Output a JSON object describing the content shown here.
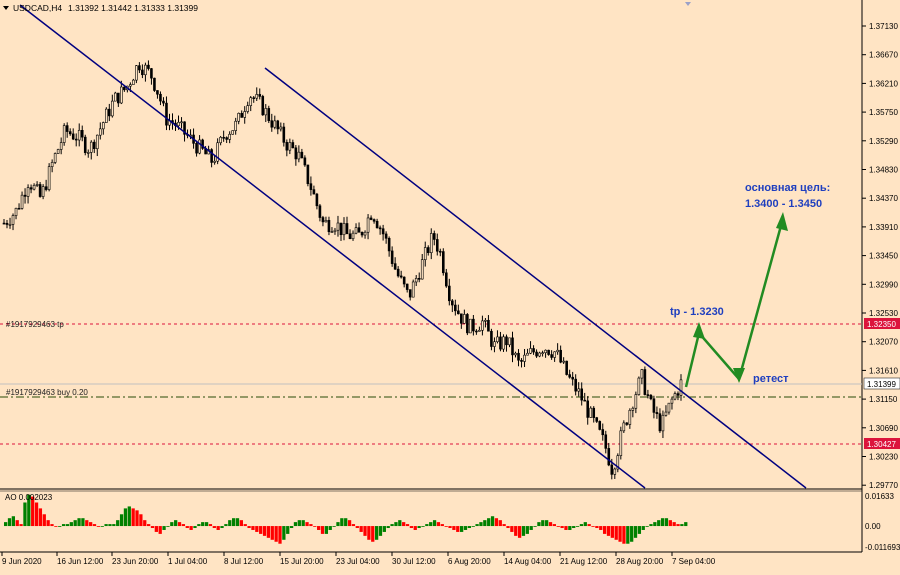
{
  "header": {
    "symbol": "USDCAD,H4",
    "ohlc": "1.31392 1.31442 1.31333 1.31399"
  },
  "orders": {
    "tp_label": "#1917929463 tp",
    "buy_label": "#1917929463 buy 0.20"
  },
  "annotations": {
    "main_target_line1": "основная цель:",
    "main_target_line2": "1.3400 - 1.3450",
    "tp_text": "tp - 1.3230",
    "retest_text": "ретест"
  },
  "indicator": {
    "label": "AO 0.002023",
    "ticks": [
      "0.01633",
      "0.00",
      "-0.011693"
    ]
  },
  "price_axis": {
    "ticks": [
      "1.37130",
      "1.36670",
      "1.36210",
      "1.35750",
      "1.35290",
      "1.34830",
      "1.34370",
      "1.33910",
      "1.33450",
      "1.32990",
      "1.32530",
      "1.32070",
      "1.31610",
      "1.31150",
      "1.30690",
      "1.30230",
      "1.29770"
    ],
    "tp_tag": "1.32350",
    "current_tag": "1.31399",
    "sl_tag": "1.30427"
  },
  "time_axis": {
    "labels": [
      "9 Jun 2020",
      "16 Jun 12:00",
      "23 Jun 20:00",
      "1 Jul 04:00",
      "8 Jul 12:00",
      "15 Jul 20:00",
      "23 Jul 04:00",
      "30 Jul 12:00",
      "6 Aug 20:00",
      "14 Aug 04:00",
      "21 Aug 12:00",
      "28 Aug 20:00",
      "7 Sep 04:00"
    ]
  },
  "colors": {
    "background": "#ffe4c4",
    "candles": "#000000",
    "channel": "#000080",
    "arrow": "#228b22",
    "annotation_text": "#1f3fbf",
    "tp_line": "#dc143c",
    "entry_line": "#556b2f",
    "ao_up": "#008000",
    "ao_down": "#ff0000"
  },
  "chart_data": {
    "type": "candlestick",
    "symbol": "USDCAD",
    "timeframe": "H4",
    "ylim": [
      1.2977,
      1.3739
    ],
    "price_path": [
      [
        0,
        1.34
      ],
      [
        5,
        1.342
      ],
      [
        10,
        1.347
      ],
      [
        15,
        1.344
      ],
      [
        20,
        1.35
      ],
      [
        25,
        1.355
      ],
      [
        30,
        1.354
      ],
      [
        35,
        1.352
      ],
      [
        40,
        1.356
      ],
      [
        45,
        1.36
      ],
      [
        50,
        1.362
      ],
      [
        55,
        1.366
      ],
      [
        60,
        1.364
      ],
      [
        63,
        1.361
      ],
      [
        66,
        1.357
      ],
      [
        70,
        1.356
      ],
      [
        75,
        1.354
      ],
      [
        80,
        1.352
      ],
      [
        85,
        1.35
      ],
      [
        90,
        1.3545
      ],
      [
        95,
        1.356
      ],
      [
        100,
        1.361
      ],
      [
        105,
        1.359
      ],
      [
        110,
        1.356
      ],
      [
        115,
        1.353
      ],
      [
        120,
        1.351
      ],
      [
        125,
        1.346
      ],
      [
        130,
        1.34
      ],
      [
        135,
        1.34
      ],
      [
        140,
        1.338
      ],
      [
        145,
        1.338
      ],
      [
        150,
        1.342
      ],
      [
        155,
        1.338
      ],
      [
        160,
        1.332
      ],
      [
        165,
        1.328
      ],
      [
        170,
        1.333
      ],
      [
        175,
        1.338
      ],
      [
        178,
        1.335
      ],
      [
        182,
        1.328
      ],
      [
        186,
        1.325
      ],
      [
        190,
        1.323
      ],
      [
        195,
        1.324
      ],
      [
        200,
        1.32
      ],
      [
        205,
        1.321
      ],
      [
        210,
        1.317
      ],
      [
        215,
        1.319
      ],
      [
        220,
        1.32
      ],
      [
        225,
        1.319
      ],
      [
        230,
        1.315
      ],
      [
        235,
        1.312
      ],
      [
        240,
        1.308
      ],
      [
        245,
        1.304
      ],
      [
        248,
        1.3
      ],
      [
        252,
        1.306
      ],
      [
        256,
        1.311
      ],
      [
        260,
        1.315
      ],
      [
        264,
        1.31
      ],
      [
        268,
        1.307
      ],
      [
        272,
        1.311
      ],
      [
        276,
        1.314
      ]
    ],
    "levels": [
      {
        "name": "tp",
        "price": 1.3235
      },
      {
        "name": "buy",
        "price": 1.312
      },
      {
        "name": "current",
        "price": 1.31399
      },
      {
        "name": "sl",
        "price": 1.30427
      }
    ],
    "forecast_path": [
      [
        "now",
        1.314
      ],
      [
        "tp",
        1.324
      ],
      [
        "retest",
        1.316
      ],
      [
        "target",
        1.34
      ]
    ],
    "ao_ylim": [
      -0.011693,
      0.01633
    ],
    "ao_values": [
      0.002,
      0.004,
      0.005,
      0.003,
      0.001,
      0.012,
      0.016,
      0.015,
      0.012,
      0.009,
      0.006,
      0.003,
      0.001,
      0.0,
      0.0,
      0.001,
      0.001,
      0.002,
      0.003,
      0.004,
      0.004,
      0.003,
      0.002,
      0.001,
      0.0,
      0.0,
      0.001,
      0.001,
      0.001,
      0.003,
      0.006,
      0.009,
      0.01,
      0.009,
      0.008,
      0.006,
      0.003,
      0.001,
      -0.001,
      -0.003,
      -0.004,
      -0.002,
      0.0,
      0.002,
      0.003,
      0.002,
      0.001,
      -0.001,
      -0.002,
      -0.001,
      0.001,
      0.002,
      0.002,
      0.001,
      -0.001,
      -0.002,
      -0.001,
      0.001,
      0.003,
      0.004,
      0.004,
      0.003,
      0.001,
      -0.001,
      -0.002,
      -0.003,
      -0.004,
      -0.005,
      -0.006,
      -0.007,
      -0.008,
      -0.009,
      -0.007,
      -0.004,
      -0.001,
      0.002,
      0.003,
      0.003,
      0.002,
      0.001,
      0.0,
      -0.002,
      -0.004,
      -0.004,
      -0.002,
      0.0,
      0.002,
      0.004,
      0.004,
      0.003,
      0.001,
      -0.001,
      -0.003,
      -0.005,
      -0.007,
      -0.008,
      -0.007,
      -0.005,
      -0.003,
      -0.001,
      0.001,
      0.002,
      0.003,
      0.002,
      0.001,
      -0.001,
      -0.002,
      -0.001,
      0.0,
      0.001,
      0.002,
      0.003,
      0.002,
      0.001,
      0.0,
      -0.001,
      -0.002,
      -0.003,
      -0.003,
      -0.002,
      -0.001,
      0.0,
      0.001,
      0.002,
      0.003,
      0.004,
      0.005,
      0.004,
      0.003,
      0.001,
      -0.001,
      -0.003,
      -0.005,
      -0.006,
      -0.005,
      -0.004,
      -0.002,
      0.0,
      0.002,
      0.003,
      0.003,
      0.002,
      0.001,
      0.0,
      -0.001,
      -0.002,
      -0.002,
      -0.001,
      0.0,
      0.001,
      0.002,
      0.001,
      0.0,
      -0.001,
      -0.002,
      -0.004,
      -0.005,
      -0.006,
      -0.007,
      -0.008,
      -0.009,
      -0.009,
      -0.008,
      -0.006,
      -0.004,
      -0.002,
      0.0,
      0.001,
      0.002,
      0.003,
      0.004,
      0.004,
      0.003,
      0.002,
      0.001,
      0.001,
      0.002
    ]
  }
}
